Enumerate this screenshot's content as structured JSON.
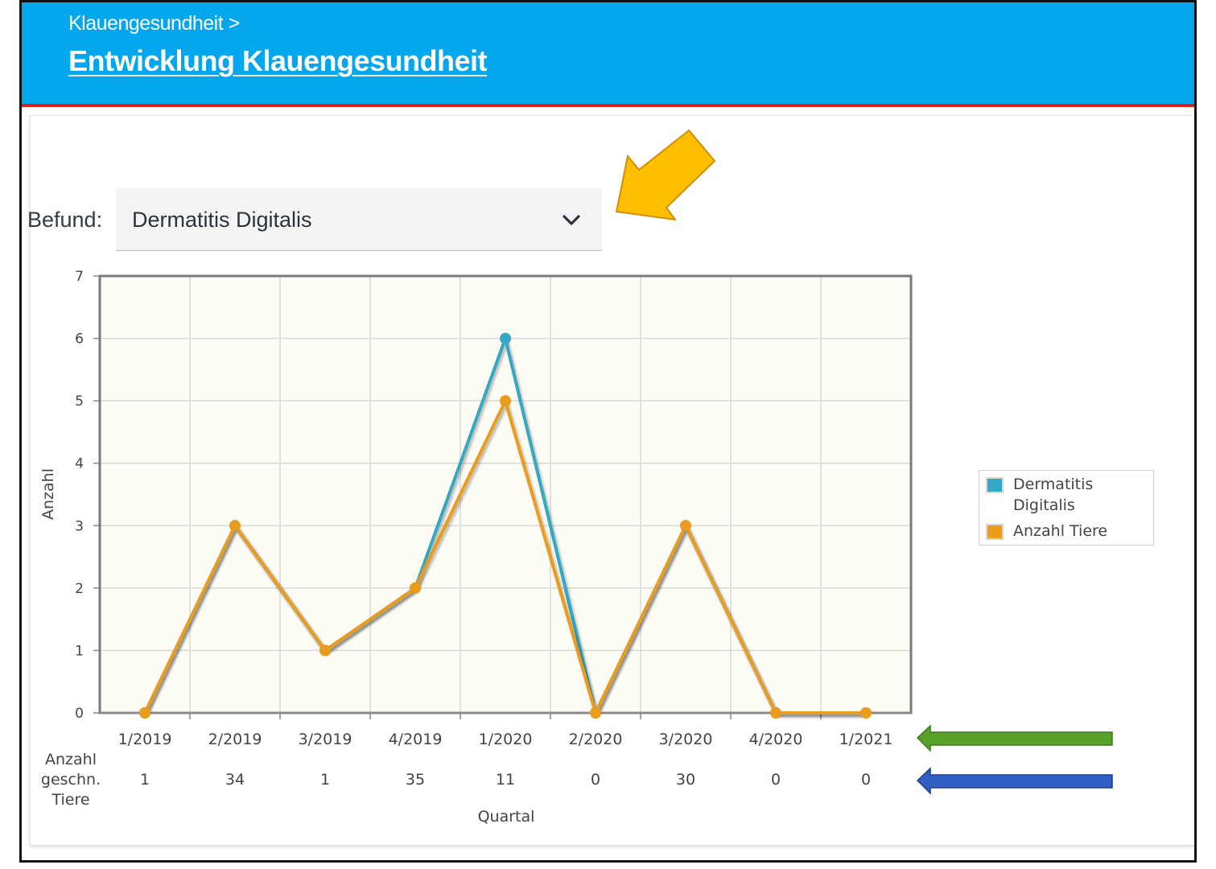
{
  "header": {
    "breadcrumb": "Klauengesundheit >",
    "title": "Entwicklung Klauengesundheit"
  },
  "filter": {
    "label": "Befund:",
    "selected": "Dermatitis Digitalis"
  },
  "colors": {
    "header_bg": "#04a6ee",
    "header_border": "#e21b1b",
    "series_1": "#34a7c2",
    "series_2": "#eb9c1b",
    "plot_bg": "#fdfcf5",
    "annotation_yellow": "#ffbe00",
    "annotation_green": "#58a22c",
    "annotation_blue": "#2f5fc2"
  },
  "chart_data": {
    "type": "line",
    "categories": [
      "1/2019",
      "2/2019",
      "3/2019",
      "4/2019",
      "1/2020",
      "2/2020",
      "3/2020",
      "4/2020",
      "1/2021"
    ],
    "series": [
      {
        "name": "Dermatitis Digitalis",
        "values": [
          0,
          3,
          1,
          2,
          6,
          0,
          3,
          0,
          0
        ]
      },
      {
        "name": "Anzahl Tiere",
        "values": [
          0,
          3,
          1,
          2,
          5,
          0,
          3,
          0,
          0
        ]
      }
    ],
    "ylim": [
      0,
      7
    ],
    "yticks": [
      "0",
      "1",
      "2",
      "3",
      "4",
      "5",
      "6",
      "7"
    ],
    "ylabel": "Anzahl",
    "xlabel": "Quartal",
    "grid": true,
    "legend_position": "right",
    "extra_row": {
      "label_lines": [
        "Anzahl",
        "geschn.",
        "Tiere"
      ],
      "values": [
        "1",
        "34",
        "1",
        "35",
        "11",
        "0",
        "30",
        "0",
        "0"
      ]
    }
  },
  "annotations": {
    "arrows": [
      "yellow-arrow-icon",
      "green-arrow-icon",
      "blue-arrow-icon"
    ]
  }
}
